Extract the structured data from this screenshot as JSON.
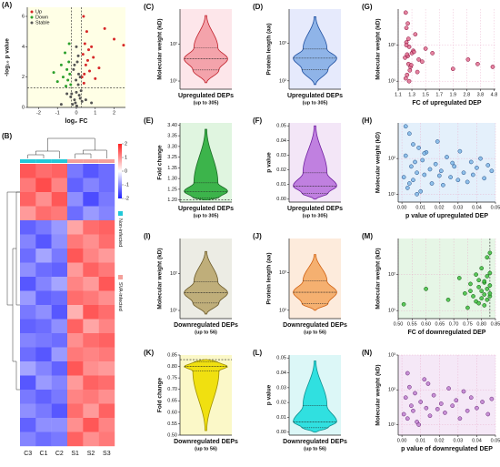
{
  "chart_data": [
    {
      "type": "volcano",
      "panel": "(A)",
      "xlabel": "log₂ FC",
      "ylabel": "-log₁₀ p value",
      "background": "#ffffe6",
      "xlim": [
        -2.6,
        2.6
      ],
      "ylim": [
        0,
        6.6
      ],
      "xticks": [
        -2,
        -1,
        0,
        1,
        2
      ],
      "yticks": [
        0,
        2,
        4,
        6
      ],
      "legend": "upper left",
      "reference_lines": {
        "x": [
          -0.26,
          0.26
        ],
        "y": [
          1.301
        ]
      },
      "series": [
        {
          "name": "Up",
          "color": "#d62728",
          "x": [
            0.3,
            0.35,
            0.4,
            0.45,
            0.5,
            0.55,
            0.6,
            0.7,
            0.8,
            0.9,
            1.0,
            1.2,
            1.5,
            2.0,
            2.5,
            0.38,
            0.42,
            0.65
          ],
          "values": [
            2.0,
            3.5,
            1.6,
            4.2,
            2.8,
            5.0,
            3.1,
            2.4,
            4.0,
            3.3,
            1.9,
            2.6,
            5.2,
            4.5,
            4.1,
            6.0,
            2.2,
            3.8
          ]
        },
        {
          "name": "Down",
          "color": "#2ca02c",
          "x": [
            -0.3,
            -0.35,
            -0.4,
            -0.45,
            -0.5,
            -0.6,
            -0.7,
            -0.8,
            -1.0,
            -1.2,
            -0.38,
            -0.55
          ],
          "values": [
            1.5,
            2.2,
            3.0,
            1.8,
            2.5,
            3.6,
            2.0,
            2.8,
            1.7,
            2.3,
            4.2,
            1.4
          ]
        },
        {
          "name": "Stable",
          "color": "#555555",
          "x": [
            -0.2,
            -0.1,
            0,
            0.1,
            0.2,
            -0.15,
            0.05,
            0.15,
            -0.05,
            0.25,
            -0.25,
            0.0,
            0.1,
            -0.1,
            0.2,
            -0.3,
            0.3,
            0.5,
            -0.5,
            0.8,
            -0.8,
            0.02,
            -0.02,
            0.12
          ],
          "values": [
            0.2,
            0.5,
            1.0,
            1.5,
            2.0,
            2.5,
            3.0,
            0.8,
            0.3,
            1.1,
            0.9,
            4.0,
            3.4,
            2.8,
            0.6,
            0.7,
            0.4,
            0.5,
            0.9,
            0.3,
            0.2,
            0.1,
            1.8,
            2.2
          ]
        }
      ]
    },
    {
      "type": "heatmap",
      "panel": "(B)",
      "categories": [
        "C3",
        "C1",
        "C2",
        "S1",
        "S2",
        "S3"
      ],
      "colors": [
        "#1f1fff",
        "#ffffff",
        "#ff1f1f"
      ],
      "zlim": [
        -2,
        2
      ],
      "zticks": [
        2,
        1,
        0,
        -1,
        -2
      ],
      "groups": [
        {
          "name": "Non-infected",
          "color": "#22c8d8",
          "columns": [
            "C3",
            "C1",
            "C2"
          ]
        },
        {
          "name": "SVA-infected",
          "color": "#f4a09a",
          "columns": [
            "S1",
            "S2",
            "S3"
          ]
        }
      ],
      "values": [
        [
          1.5,
          1.3,
          1.4,
          -1.2,
          -1.5,
          -1.3
        ],
        [
          1.2,
          1.6,
          1.1,
          -1.4,
          -1.1,
          -1.3
        ],
        [
          1.4,
          1.0,
          1.5,
          -1.0,
          -1.6,
          -1.2
        ],
        [
          0.9,
          1.3,
          1.2,
          -1.3,
          -0.9,
          -1.1
        ],
        [
          -1.4,
          -1.2,
          -0.9,
          0.8,
          1.3,
          1.4
        ],
        [
          -1.1,
          -1.5,
          -1.0,
          1.2,
          1.0,
          1.3
        ],
        [
          -1.3,
          -0.8,
          -1.2,
          1.5,
          1.1,
          0.9
        ],
        [
          -1.0,
          -1.3,
          -1.4,
          0.9,
          1.4,
          1.2
        ],
        [
          -1.5,
          -1.1,
          -0.8,
          1.1,
          0.9,
          1.5
        ],
        [
          -0.9,
          -1.4,
          -1.3,
          1.3,
          1.2,
          1.0
        ],
        [
          -1.2,
          -1.0,
          -1.5,
          0.7,
          1.5,
          1.3
        ],
        [
          -1.4,
          -1.3,
          -1.0,
          1.4,
          0.8,
          1.1
        ],
        [
          -1.1,
          -1.2,
          -1.3,
          1.0,
          1.3,
          1.4
        ],
        [
          -1.3,
          -1.5,
          -0.9,
          1.2,
          1.1,
          1.2
        ],
        [
          -0.8,
          -1.1,
          -1.4,
          1.5,
          1.0,
          0.9
        ],
        [
          -1.5,
          -0.9,
          -1.1,
          0.9,
          1.4,
          1.3
        ],
        [
          -1.2,
          -1.4,
          -1.2,
          1.1,
          1.2,
          1.0
        ],
        [
          -1.0,
          -1.2,
          -1.5,
          1.3,
          0.9,
          1.4
        ],
        [
          -1.4,
          -1.0,
          -1.0,
          1.0,
          1.5,
          1.1
        ],
        [
          -1.1,
          -1.3,
          -1.2,
          1.4,
          1.0,
          1.2
        ]
      ]
    },
    {
      "type": "violin",
      "panel": "(C)",
      "ylabel": "Molecular weight (kD)",
      "xlabel": [
        "Upregulated DEPs",
        "(up to 305)"
      ],
      "background": "#fde6ea",
      "color": "#f4a3ab",
      "edge": "#c0202a",
      "log": true,
      "ylim": [
        6,
        900
      ],
      "yticks": [
        {
          "value": 10,
          "label": "10¹"
        },
        {
          "value": 100,
          "label": "10²"
        }
      ],
      "stats": {
        "min": 9,
        "q1": 20,
        "median": 40,
        "q3": 80,
        "max": 600
      }
    },
    {
      "type": "violin",
      "panel": "(D)",
      "ylabel": "Protein length (aa)",
      "xlabel": [
        "Upregulated DEPs",
        "(up to 305)"
      ],
      "background": "#e6eafc",
      "color": "#8fb4e8",
      "edge": "#1f4fa0",
      "log": true,
      "ylim": [
        60,
        8000
      ],
      "yticks": [
        {
          "value": 100,
          "label": "10²"
        },
        {
          "value": 1000,
          "label": "10³"
        }
      ],
      "stats": {
        "min": 80,
        "q1": 200,
        "median": 400,
        "q3": 700,
        "max": 5000
      }
    },
    {
      "type": "scatter",
      "panel": "(G)",
      "ylabel": "Molecular weight (kD)",
      "xlabel": "FC of upregulated DEP",
      "background": "#ffffff",
      "grid": true,
      "color": "#e07090",
      "edge": "#800030",
      "log": true,
      "broken_axis": "x",
      "xlim": [
        1.1,
        4.9
      ],
      "xticks": [
        1.1,
        1.3,
        1.5,
        1.7,
        1.9,
        2.8,
        3.8,
        4.8
      ],
      "ylim": [
        6,
        1000
      ],
      "yticks": [
        {
          "value": 10,
          "label": "10¹"
        },
        {
          "value": 100,
          "label": "10²"
        }
      ],
      "x": [
        1.2,
        1.22,
        1.25,
        1.21,
        1.3,
        1.28,
        1.23,
        1.35,
        1.24,
        1.26,
        1.4,
        1.22,
        1.27,
        1.32,
        1.21,
        1.45,
        1.25,
        1.23,
        1.5,
        1.29,
        1.24,
        1.38,
        1.6,
        1.22,
        1.33,
        1.9,
        2.9,
        3.6,
        4.7,
        1.26
      ],
      "values": [
        45,
        120,
        30,
        800,
        60,
        25,
        15,
        200,
        50,
        90,
        40,
        300,
        20,
        70,
        12,
        35,
        150,
        55,
        80,
        28,
        400,
        18,
        60,
        100,
        65,
        22,
        40,
        30,
        25,
        10
      ]
    },
    {
      "type": "violin",
      "panel": "(E)",
      "ylabel": "Fold change",
      "xlabel": [
        "Upregulated DEPs",
        "(up to 305)"
      ],
      "background": "#e0f5e0",
      "color": "#3cb44b",
      "edge": "#1a6a25",
      "broken_axis": "y",
      "ylim": [
        1.19,
        3.41
      ],
      "yticks": [
        {
          "value": 1.2,
          "label": "1.20"
        },
        1.25,
        {
          "value": 1.3,
          "label": "1.30"
        },
        1.35,
        3.25,
        {
          "value": 3.3,
          "label": "3.30"
        },
        3.35,
        {
          "value": 3.4,
          "label": "3.40"
        }
      ],
      "reference_lines": {
        "y": [
          1.2
        ]
      },
      "stats": {
        "min": 1.2,
        "q1": 1.21,
        "median": 1.24,
        "q3": 1.28,
        "max": 3.38
      }
    },
    {
      "type": "violin",
      "panel": "(F)",
      "ylabel": "p value",
      "xlabel": [
        "Upregulated DEPs",
        "(up to 305)"
      ],
      "background": "#f3e6f7",
      "color": "#c080e0",
      "edge": "#7020a0",
      "ylim": [
        -0.002,
        0.052
      ],
      "yticks": [
        {
          "value": 0,
          "label": "0.00"
        },
        0.01,
        0.02,
        0.03,
        0.04,
        0.05
      ],
      "stats": {
        "min": 0,
        "q1": 0.004,
        "median": 0.009,
        "q3": 0.018,
        "max": 0.05
      }
    },
    {
      "type": "scatter",
      "panel": "(H)",
      "ylabel": "Molecular weight (kD)",
      "xlabel": "p value of upregulated DEP",
      "background": "#e4f0fb",
      "grid": true,
      "color": "#80b8e8",
      "edge": "#204880",
      "log": true,
      "xlim": [
        -0.002,
        0.05
      ],
      "xticks": [
        {
          "value": 0,
          "label": "0.00"
        },
        0.01,
        0.02,
        0.03,
        0.04,
        0.05
      ],
      "ylim": [
        6,
        1000
      ],
      "yticks": [
        {
          "value": 10,
          "label": "10¹"
        },
        {
          "value": 100,
          "label": "10²"
        }
      ],
      "x": [
        0.001,
        0.002,
        0.003,
        0.004,
        0.005,
        0.006,
        0.007,
        0.008,
        0.009,
        0.01,
        0.011,
        0.012,
        0.013,
        0.015,
        0.016,
        0.018,
        0.019,
        0.021,
        0.022,
        0.024,
        0.026,
        0.028,
        0.03,
        0.031,
        0.033,
        0.035,
        0.037,
        0.038,
        0.04,
        0.042,
        0.044,
        0.046,
        0.048,
        0.002,
        0.004,
        0.006,
        0.008,
        0.012,
        0.02,
        0.027
      ],
      "values": [
        30,
        120,
        15,
        500,
        60,
        25,
        80,
        40,
        200,
        12,
        90,
        35,
        150,
        50,
        20,
        70,
        300,
        45,
        18,
        110,
        30,
        60,
        25,
        160,
        40,
        22,
        80,
        35,
        55,
        100,
        28,
        65,
        45,
        800,
        20,
        250,
        10,
        140,
        33,
        75
      ]
    },
    {
      "type": "violin",
      "panel": "(I)",
      "ylabel": "Molecular weight (kD)",
      "xlabel": [
        "Downregulated DEPs",
        "(up to 56)"
      ],
      "background": "#ecece4",
      "color": "#bfae7a",
      "edge": "#6b5a2a",
      "log": true,
      "ylim": [
        6,
        900
      ],
      "yticks": [
        {
          "value": 10,
          "label": "10¹"
        },
        {
          "value": 100,
          "label": "10²"
        }
      ],
      "stats": {
        "min": 8,
        "q1": 16,
        "median": 30,
        "q3": 60,
        "max": 400
      }
    },
    {
      "type": "violin",
      "panel": "(J)",
      "ylabel": "Protein length (aa)",
      "xlabel": [
        "Downregulated DEPs",
        "(up to 56)"
      ],
      "background": "#fdebdc",
      "color": "#f5b070",
      "edge": "#d06010",
      "log": true,
      "ylim": [
        60,
        8000
      ],
      "yticks": [
        {
          "value": 100,
          "label": "10²"
        },
        {
          "value": 1000,
          "label": "10³"
        }
      ],
      "stats": {
        "min": 100,
        "q1": 150,
        "median": 300,
        "q3": 600,
        "max": 3000
      }
    },
    {
      "type": "scatter",
      "panel": "(M)",
      "ylabel": "Molecular weight (kD)",
      "xlabel": "FC of downregulated DEP",
      "background": "#e6f6e6",
      "grid": true,
      "color": "#40c040",
      "edge": "#105010",
      "log": true,
      "xlim": [
        0.5,
        0.85
      ],
      "xticks": [
        {
          "value": 0.5,
          "label": "0.50"
        },
        0.55,
        {
          "value": 0.6,
          "label": "0.60"
        },
        0.65,
        {
          "value": 0.7,
          "label": "0.70"
        },
        0.75,
        {
          "value": 0.8,
          "label": "0.80"
        },
        0.85
      ],
      "ylim": [
        6,
        1000
      ],
      "yticks": [
        {
          "value": 10,
          "label": "10¹"
        },
        {
          "value": 100,
          "label": "10²"
        }
      ],
      "reference_lines": {
        "x": [
          0.83
        ]
      },
      "x": [
        0.52,
        0.6,
        0.68,
        0.72,
        0.74,
        0.75,
        0.76,
        0.77,
        0.78,
        0.78,
        0.79,
        0.79,
        0.8,
        0.8,
        0.8,
        0.81,
        0.81,
        0.81,
        0.82,
        0.82,
        0.82,
        0.82,
        0.83,
        0.83,
        0.83,
        0.83,
        0.76,
        0.79,
        0.81,
        0.83
      ],
      "values": [
        15,
        40,
        20,
        80,
        30,
        12,
        55,
        25,
        100,
        18,
        45,
        70,
        22,
        35,
        150,
        28,
        60,
        14,
        90,
        40,
        20,
        300,
        50,
        25,
        110,
        400,
        35,
        16,
        65,
        30
      ]
    },
    {
      "type": "violin",
      "panel": "(K)",
      "ylabel": "Fold change",
      "xlabel": [
        "Downregulated DEPs",
        "(up to 56)"
      ],
      "background": "#fbf8c8",
      "color": "#f0e010",
      "edge": "#a09000",
      "ylim": [
        0.5,
        0.85
      ],
      "yticks": [
        {
          "value": 0.5,
          "label": "0.50"
        },
        0.55,
        {
          "value": 0.6,
          "label": "0.60"
        },
        0.65,
        {
          "value": 0.7,
          "label": "0.70"
        },
        0.75,
        {
          "value": 0.8,
          "label": "0.80"
        },
        0.85
      ],
      "reference_lines": {
        "y": [
          0.83
        ]
      },
      "stats": {
        "min": 0.52,
        "q1": 0.78,
        "median": 0.8,
        "q3": 0.82,
        "max": 0.83
      }
    },
    {
      "type": "violin",
      "panel": "(L)",
      "ylabel": "p value",
      "xlabel": [
        "Downregulated DEPs",
        "(up to 56)"
      ],
      "background": "#dcf7f7",
      "color": "#30e0e0",
      "edge": "#109090",
      "ylim": [
        -0.002,
        0.052
      ],
      "yticks": [
        {
          "value": 0,
          "label": "0.00"
        },
        0.01,
        0.02,
        0.03,
        0.04,
        0.05
      ],
      "stats": {
        "min": 0,
        "q1": 0.003,
        "median": 0.007,
        "q3": 0.018,
        "max": 0.048
      }
    },
    {
      "type": "scatter",
      "panel": "(N)",
      "ylabel": "Molecular weight (kD)",
      "xlabel": "p value of downregulated DEP",
      "background": "#f5e8f7",
      "grid": true,
      "color": "#c080d0",
      "edge": "#602070",
      "log": true,
      "xlim": [
        -0.002,
        0.05
      ],
      "xticks": [
        {
          "value": 0,
          "label": "0.00"
        },
        0.01,
        0.02,
        0.03,
        0.04,
        0.05
      ],
      "ylim": [
        5,
        1000
      ],
      "yticks": [
        {
          "value": 10,
          "label": "10¹"
        },
        {
          "value": 100,
          "label": "10²"
        },
        {
          "value": 1000,
          "label": "10³"
        }
      ],
      "x": [
        0.001,
        0.002,
        0.003,
        0.004,
        0.005,
        0.006,
        0.007,
        0.008,
        0.01,
        0.012,
        0.013,
        0.015,
        0.017,
        0.019,
        0.021,
        0.023,
        0.025,
        0.027,
        0.029,
        0.031,
        0.033,
        0.035,
        0.037,
        0.04,
        0.043,
        0.046,
        0.048,
        0.003,
        0.009,
        0.014
      ],
      "values": [
        20,
        60,
        15,
        120,
        35,
        25,
        80,
        12,
        45,
        200,
        30,
        18,
        70,
        28,
        40,
        22,
        110,
        35,
        50,
        15,
        90,
        25,
        60,
        30,
        45,
        20,
        55,
        300,
        10,
        150
      ]
    }
  ]
}
